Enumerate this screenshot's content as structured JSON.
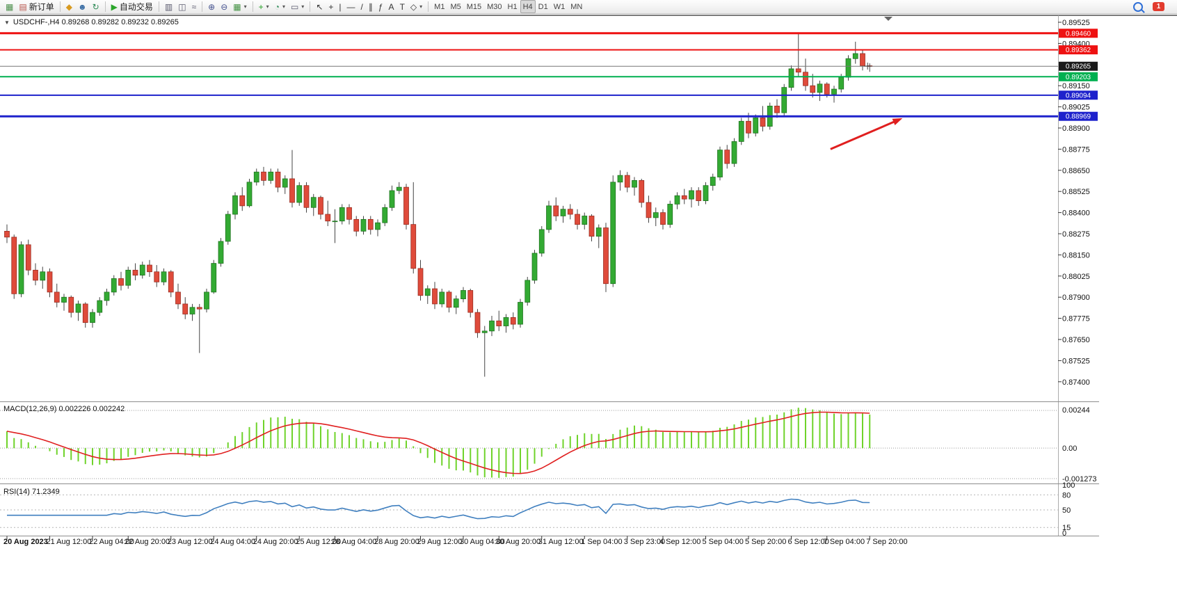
{
  "toolbar": {
    "badge_count": "1",
    "groups": [
      {
        "items": [
          {
            "name": "new-chart-button",
            "icon": "new-chart-icon",
            "glyph": "▦",
            "color": "#4c8f4c"
          },
          {
            "name": "new-order-button",
            "icon": "new-order-icon",
            "glyph": "▤",
            "color": "#b8534a",
            "label": "新订单"
          }
        ]
      },
      {
        "items": [
          {
            "name": "market-button",
            "icon": "market-icon",
            "glyph": "◆",
            "color": "#d89a20"
          },
          {
            "name": "community-button",
            "icon": "community-icon",
            "glyph": "☻",
            "color": "#3a6ea5"
          },
          {
            "name": "refresh-button",
            "icon": "refresh-icon",
            "glyph": "↻",
            "color": "#2e8b57"
          }
        ]
      },
      {
        "items": [
          {
            "name": "autotrading-button",
            "icon": "autotrading-play-icon",
            "glyph": "▶",
            "color": "#2aa52a",
            "label": "自动交易"
          }
        ]
      },
      {
        "items": [
          {
            "name": "bar-chart-button",
            "icon": "bar-chart-icon",
            "glyph": "▥",
            "color": "#5a5a6e"
          },
          {
            "name": "candlestick-chart-button",
            "icon": "candlestick-chart-icon",
            "glyph": "◫",
            "color": "#5a5a6e"
          },
          {
            "name": "line-chart-button",
            "icon": "line-chart-icon",
            "glyph": "≈",
            "color": "#5a5a6e"
          }
        ]
      },
      {
        "items": [
          {
            "name": "zoom-in-button",
            "icon": "zoom-in-icon",
            "glyph": "⊕",
            "color": "#44518f"
          },
          {
            "name": "zoom-out-button",
            "icon": "zoom-out-icon",
            "glyph": "⊖",
            "color": "#44518f"
          },
          {
            "name": "tile-windows-button",
            "icon": "tile-windows-icon",
            "glyph": "▦",
            "color": "#3f8f3f",
            "caret": true
          }
        ]
      },
      {
        "items": [
          {
            "name": "indicators-button",
            "icon": "indicators-plus-icon",
            "glyph": "+",
            "color": "#1f9e1f",
            "caret": true
          },
          {
            "name": "periods-button",
            "icon": "clock-icon",
            "glyph": "◔",
            "color": "#2e8b57",
            "caret": true
          },
          {
            "name": "templates-button",
            "icon": "template-icon",
            "glyph": "▭",
            "color": "#5a5a6e",
            "caret": true
          }
        ]
      },
      {
        "items": [
          {
            "name": "cursor-button",
            "icon": "cursor-arrow-icon",
            "glyph": "↖",
            "color": "#333333"
          },
          {
            "name": "crosshair-button",
            "icon": "crosshair-icon",
            "glyph": "+",
            "color": "#333333"
          },
          {
            "name": "vertical-line-button",
            "icon": "vertical-line-icon",
            "glyph": "|",
            "color": "#333333"
          },
          {
            "name": "horizontal-line-button",
            "icon": "horizontal-line-icon",
            "glyph": "—",
            "color": "#333333"
          },
          {
            "name": "trendline-button",
            "icon": "trendline-icon",
            "glyph": "/",
            "color": "#333333"
          },
          {
            "name": "channel-button",
            "icon": "channel-icon",
            "glyph": "∥",
            "color": "#333333"
          },
          {
            "name": "fibonacci-button",
            "icon": "fibonacci-icon",
            "glyph": "ƒ",
            "color": "#333333"
          },
          {
            "name": "text-button",
            "icon": "text-icon",
            "glyph": "A",
            "color": "#333333"
          },
          {
            "name": "text-label-button",
            "icon": "text-label-icon",
            "glyph": "T",
            "color": "#333333"
          },
          {
            "name": "shapes-button",
            "icon": "shapes-icon",
            "glyph": "◇",
            "color": "#333333",
            "caret": true
          }
        ]
      }
    ],
    "timeframes": {
      "items": [
        "M1",
        "M5",
        "M15",
        "M30",
        "H1",
        "H4",
        "D1",
        "W1",
        "MN"
      ],
      "active": "H4"
    }
  },
  "chart": {
    "title_text": "USDCHF-,H4 0.89268 0.89282 0.89232 0.89265"
  },
  "icons": {
    "chart_menu_triangle": "▼"
  },
  "chart_data": {
    "type": "candlestick",
    "symbol": "USDCHF-",
    "period": "H4",
    "ohlc_display": {
      "open": "0.89268",
      "high": "0.89282",
      "low": "0.89232",
      "close": "0.89265"
    },
    "price_ticks": [
      "0.89525",
      "0.89400",
      "0.89150",
      "0.89025",
      "0.88900",
      "0.88775",
      "0.88650",
      "0.88525",
      "0.88400",
      "0.88275",
      "0.88150",
      "0.88025",
      "0.87900",
      "0.87775",
      "0.87650",
      "0.87525",
      "0.87400"
    ],
    "levels": [
      {
        "price": 0.8946,
        "label": "0.89460",
        "color": "#ee1111",
        "width": 3
      },
      {
        "price": 0.89362,
        "label": "0.89362",
        "color": "#ee1111",
        "width": 2
      },
      {
        "price": 0.89203,
        "label": "0.89203",
        "color": "#00b050",
        "width": 2
      },
      {
        "price": 0.89094,
        "label": "0.89094",
        "color": "#1e22cc",
        "width": 2
      },
      {
        "price": 0.88969,
        "label": "0.88969",
        "color": "#1e22cc",
        "width": 3
      }
    ],
    "current_price": {
      "value": 0.89265,
      "label": "0.89265",
      "line_color": "#777777",
      "tag_bg": "#1a1a1a"
    },
    "candles": [
      [
        0.8829,
        0.8833,
        0.8822,
        0.88255
      ],
      [
        0.88255,
        0.8827,
        0.8789,
        0.8792
      ],
      [
        0.8792,
        0.8823,
        0.879,
        0.8821
      ],
      [
        0.8821,
        0.8824,
        0.8803,
        0.8806
      ],
      [
        0.8806,
        0.881,
        0.8797,
        0.88
      ],
      [
        0.88,
        0.8808,
        0.8795,
        0.8805
      ],
      [
        0.8805,
        0.8807,
        0.879,
        0.8793
      ],
      [
        0.8793,
        0.8798,
        0.8784,
        0.8787
      ],
      [
        0.8787,
        0.8792,
        0.8782,
        0.879
      ],
      [
        0.879,
        0.8791,
        0.8778,
        0.8781
      ],
      [
        0.8781,
        0.8788,
        0.8776,
        0.8786
      ],
      [
        0.8786,
        0.8787,
        0.8772,
        0.8775
      ],
      [
        0.8775,
        0.8783,
        0.8772,
        0.8781
      ],
      [
        0.8781,
        0.879,
        0.8779,
        0.8788
      ],
      [
        0.8788,
        0.8795,
        0.8785,
        0.8793
      ],
      [
        0.8793,
        0.8803,
        0.8791,
        0.8801
      ],
      [
        0.8801,
        0.8805,
        0.8794,
        0.8797
      ],
      [
        0.8797,
        0.8808,
        0.8795,
        0.8806
      ],
      [
        0.8806,
        0.881,
        0.88,
        0.8803
      ],
      [
        0.8803,
        0.8811,
        0.8801,
        0.8809
      ],
      [
        0.8809,
        0.8812,
        0.8802,
        0.8805
      ],
      [
        0.8805,
        0.8809,
        0.8796,
        0.8799
      ],
      [
        0.8799,
        0.8807,
        0.8797,
        0.8805
      ],
      [
        0.8805,
        0.8806,
        0.879,
        0.8793
      ],
      [
        0.8793,
        0.8798,
        0.8783,
        0.8786
      ],
      [
        0.8786,
        0.879,
        0.8777,
        0.878
      ],
      [
        0.878,
        0.8786,
        0.8776,
        0.8784
      ],
      [
        0.8784,
        0.8786,
        0.8757,
        0.8783
      ],
      [
        0.8783,
        0.8795,
        0.8781,
        0.8793
      ],
      [
        0.8793,
        0.8812,
        0.8792,
        0.881
      ],
      [
        0.881,
        0.8825,
        0.8808,
        0.8823
      ],
      [
        0.8823,
        0.8841,
        0.8821,
        0.8839
      ],
      [
        0.8839,
        0.8852,
        0.8836,
        0.885
      ],
      [
        0.885,
        0.8855,
        0.8841,
        0.8844
      ],
      [
        0.8844,
        0.886,
        0.8843,
        0.8858
      ],
      [
        0.8858,
        0.8866,
        0.8856,
        0.8864
      ],
      [
        0.8864,
        0.8867,
        0.8856,
        0.8859
      ],
      [
        0.8859,
        0.8866,
        0.8857,
        0.8864
      ],
      [
        0.8864,
        0.8866,
        0.8852,
        0.8855
      ],
      [
        0.8855,
        0.8862,
        0.8851,
        0.886
      ],
      [
        0.886,
        0.8877,
        0.8843,
        0.8846
      ],
      [
        0.8846,
        0.8858,
        0.8844,
        0.8856
      ],
      [
        0.8856,
        0.8858,
        0.884,
        0.8843
      ],
      [
        0.8843,
        0.8851,
        0.8838,
        0.8849
      ],
      [
        0.8849,
        0.885,
        0.8836,
        0.8839
      ],
      [
        0.8839,
        0.8847,
        0.8832,
        0.8835
      ],
      [
        0.8835,
        0.8842,
        0.8822,
        0.8835
      ],
      [
        0.8835,
        0.8845,
        0.8833,
        0.8843
      ],
      [
        0.8843,
        0.8845,
        0.8833,
        0.8836
      ],
      [
        0.8836,
        0.8838,
        0.8826,
        0.8829
      ],
      [
        0.8829,
        0.8838,
        0.8827,
        0.8836
      ],
      [
        0.8836,
        0.8838,
        0.8827,
        0.883
      ],
      [
        0.883,
        0.8836,
        0.8826,
        0.8834
      ],
      [
        0.8834,
        0.8845,
        0.8832,
        0.8843
      ],
      [
        0.8843,
        0.8856,
        0.8841,
        0.8853
      ],
      [
        0.8853,
        0.8858,
        0.8851,
        0.8855
      ],
      [
        0.8855,
        0.8857,
        0.883,
        0.8833
      ],
      [
        0.8833,
        0.8858,
        0.8804,
        0.8807
      ],
      [
        0.8807,
        0.8812,
        0.8788,
        0.8791
      ],
      [
        0.8791,
        0.8797,
        0.8786,
        0.8795
      ],
      [
        0.8795,
        0.8799,
        0.8783,
        0.8786
      ],
      [
        0.8786,
        0.8795,
        0.8784,
        0.8793
      ],
      [
        0.8793,
        0.8794,
        0.8781,
        0.8784
      ],
      [
        0.8784,
        0.8791,
        0.878,
        0.8789
      ],
      [
        0.8789,
        0.8796,
        0.8787,
        0.8794
      ],
      [
        0.8794,
        0.8795,
        0.8778,
        0.8781
      ],
      [
        0.8781,
        0.8783,
        0.8766,
        0.8769
      ],
      [
        0.8769,
        0.8773,
        0.8743,
        0.877
      ],
      [
        0.877,
        0.8779,
        0.8767,
        0.8776
      ],
      [
        0.8776,
        0.8782,
        0.877,
        0.8773
      ],
      [
        0.8773,
        0.878,
        0.8769,
        0.8778
      ],
      [
        0.8778,
        0.8781,
        0.8771,
        0.8774
      ],
      [
        0.8774,
        0.8789,
        0.8772,
        0.8787
      ],
      [
        0.8787,
        0.8802,
        0.8785,
        0.88
      ],
      [
        0.88,
        0.8818,
        0.8798,
        0.8816
      ],
      [
        0.8816,
        0.8832,
        0.8814,
        0.883
      ],
      [
        0.883,
        0.8847,
        0.8828,
        0.8844
      ],
      [
        0.8844,
        0.8849,
        0.8835,
        0.8838
      ],
      [
        0.8838,
        0.8844,
        0.8834,
        0.8842
      ],
      [
        0.8842,
        0.8845,
        0.8836,
        0.8839
      ],
      [
        0.8839,
        0.8842,
        0.883,
        0.8833
      ],
      [
        0.8833,
        0.884,
        0.883,
        0.8838
      ],
      [
        0.8838,
        0.8839,
        0.8823,
        0.8826
      ],
      [
        0.8826,
        0.8833,
        0.8819,
        0.8831
      ],
      [
        0.8831,
        0.8834,
        0.8793,
        0.8798
      ],
      [
        0.8798,
        0.8862,
        0.8796,
        0.8858
      ],
      [
        0.8858,
        0.8865,
        0.8853,
        0.8862
      ],
      [
        0.8862,
        0.8864,
        0.8852,
        0.8855
      ],
      [
        0.8855,
        0.8861,
        0.885,
        0.8859
      ],
      [
        0.8859,
        0.886,
        0.8843,
        0.8846
      ],
      [
        0.8846,
        0.885,
        0.8834,
        0.8837
      ],
      [
        0.8837,
        0.8843,
        0.8832,
        0.884
      ],
      [
        0.884,
        0.8842,
        0.883,
        0.8833
      ],
      [
        0.8833,
        0.8847,
        0.8831,
        0.8845
      ],
      [
        0.8845,
        0.8852,
        0.8842,
        0.885
      ],
      [
        0.885,
        0.8854,
        0.8845,
        0.8848
      ],
      [
        0.8848,
        0.8855,
        0.8843,
        0.8853
      ],
      [
        0.8853,
        0.8855,
        0.8844,
        0.8847
      ],
      [
        0.8847,
        0.8858,
        0.8845,
        0.8856
      ],
      [
        0.8856,
        0.8863,
        0.8853,
        0.8861
      ],
      [
        0.8861,
        0.8879,
        0.8859,
        0.8877
      ],
      [
        0.8877,
        0.888,
        0.8866,
        0.8869
      ],
      [
        0.8869,
        0.8884,
        0.8867,
        0.8882
      ],
      [
        0.8882,
        0.8896,
        0.888,
        0.8894
      ],
      [
        0.8894,
        0.8899,
        0.8884,
        0.8887
      ],
      [
        0.8887,
        0.8898,
        0.8885,
        0.8896
      ],
      [
        0.8896,
        0.8903,
        0.8888,
        0.8891
      ],
      [
        0.8891,
        0.8905,
        0.8889,
        0.8903
      ],
      [
        0.8903,
        0.8907,
        0.8896,
        0.8899
      ],
      [
        0.8899,
        0.8916,
        0.8897,
        0.8914
      ],
      [
        0.8914,
        0.8927,
        0.8912,
        0.8925
      ],
      [
        0.8925,
        0.89455,
        0.892,
        0.8923
      ],
      [
        0.8923,
        0.8931,
        0.8912,
        0.8915
      ],
      [
        0.8915,
        0.8922,
        0.8908,
        0.8911
      ],
      [
        0.8911,
        0.8918,
        0.8906,
        0.8916
      ],
      [
        0.8916,
        0.8917,
        0.8908,
        0.891
      ],
      [
        0.891,
        0.8915,
        0.8905,
        0.8913
      ],
      [
        0.8913,
        0.8922,
        0.8911,
        0.892
      ],
      [
        0.892,
        0.8933,
        0.8918,
        0.8931
      ],
      [
        0.8931,
        0.8941,
        0.8928,
        0.8934
      ],
      [
        0.8934,
        0.8936,
        0.8924,
        0.89268
      ],
      [
        0.89268,
        0.89282,
        0.89232,
        0.89265
      ]
    ],
    "time_labels": [
      {
        "t": "20 Aug 2023",
        "i": 0,
        "bold": true
      },
      {
        "t": "21 Aug 12:00",
        "i": 6
      },
      {
        "t": "22 Aug 04:00",
        "i": 12
      },
      {
        "t": "22 Aug 20:00",
        "i": 17
      },
      {
        "t": "23 Aug 12:00",
        "i": 23
      },
      {
        "t": "24 Aug 04:00",
        "i": 29
      },
      {
        "t": "24 Aug 20:00",
        "i": 35
      },
      {
        "t": "25 Aug 12:00",
        "i": 41
      },
      {
        "t": "28 Aug 04:00",
        "i": 46
      },
      {
        "t": "28 Aug 20:00",
        "i": 52
      },
      {
        "t": "29 Aug 12:00",
        "i": 58
      },
      {
        "t": "30 Aug 04:00",
        "i": 64
      },
      {
        "t": "30 Aug 20:00",
        "i": 69
      },
      {
        "t": "31 Aug 12:00",
        "i": 75
      },
      {
        "t": "1 Sep 04:00",
        "i": 81
      },
      {
        "t": "3 Sep 23:00",
        "i": 87
      },
      {
        "t": "4 Sep 12:00",
        "i": 92
      },
      {
        "t": "5 Sep 04:00",
        "i": 98
      },
      {
        "t": "5 Sep 20:00",
        "i": 104
      },
      {
        "t": "6 Sep 12:00",
        "i": 110
      },
      {
        "t": "7 Sep 04:00",
        "i": 115
      },
      {
        "t": "7 Sep 20:00",
        "i": 121
      }
    ],
    "macd": {
      "label": "MACD(12,26,9) 0.002226 0.002242",
      "params": [
        12,
        26,
        9
      ],
      "value": 0.002226,
      "signal_value": 0.002242,
      "axis_labels": [
        "0.00244",
        "0.00",
        "-0.001273"
      ]
    },
    "rsi": {
      "label": "RSI(14) 71.2349",
      "period": 14,
      "value": 71.2349,
      "axis_labels": [
        {
          "v": 100,
          "t": "100"
        },
        {
          "v": 80,
          "t": "80"
        },
        {
          "v": 50,
          "t": "50"
        },
        {
          "v": 15,
          "t": "15"
        },
        {
          "v": 0,
          "t": "0"
        }
      ],
      "levels": [
        80,
        50,
        15
      ]
    },
    "arrow": {
      "from": {
        "index": 115.5,
        "price": 0.88775
      },
      "to": {
        "index": 125.6,
        "price": 0.88958
      },
      "color": "#e01f1f"
    },
    "cursor": {
      "index": 120.7,
      "price": 0.89266
    },
    "colors": {
      "up": "#33aa33",
      "up_stroke": "#1d6f1d",
      "down": "#df4b3b",
      "down_stroke": "#952a1e",
      "wick": "#444444",
      "macd_hist": "#6fd32a",
      "macd_signal": "#e02020",
      "rsi_line": "#3f7fbf"
    }
  }
}
